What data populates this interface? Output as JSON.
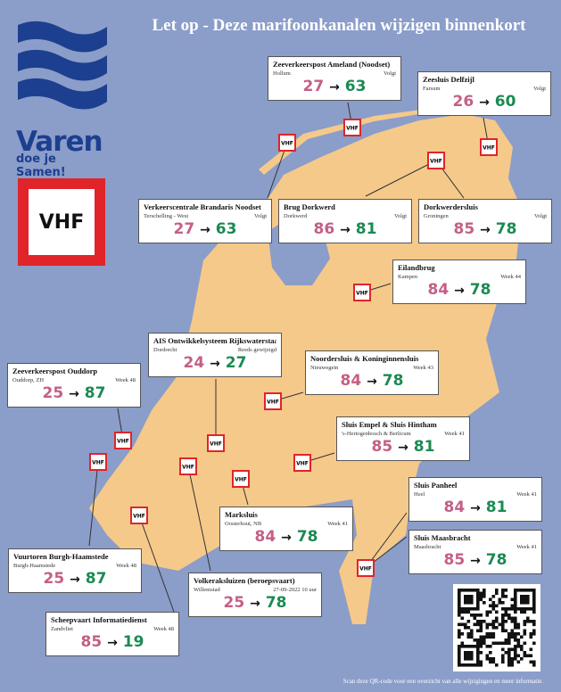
{
  "header": {
    "title": "Let op - Deze marifoonkanalen wijzigen binnenkort"
  },
  "logo": {
    "brand": "Varen",
    "tagline": "doe je Samen!",
    "vhf_label": "VHF"
  },
  "colors": {
    "sea": "#8b9dc9",
    "land": "#f5c98a",
    "old_channel": "#c45f86",
    "new_channel": "#1b8a52",
    "vhf_red": "#e0242a",
    "logo_blue": "#1d3f8f"
  },
  "marker_label": "VHF",
  "arrow_symbol": "→",
  "stations": [
    {
      "name": "Zeeverkeerspost Ameland (Noodset)",
      "place": "Hollum",
      "when": "Volgt",
      "old": "27",
      "new": "63"
    },
    {
      "name": "Zeesluis Delfzijl",
      "place": "Farsum",
      "when": "Volgt",
      "old": "26",
      "new": "60"
    },
    {
      "name": "Verkeerscentrale Brandaris Noodset",
      "place": "Terschelling - West",
      "when": "Volgt",
      "old": "27",
      "new": "63"
    },
    {
      "name": "Brug Dorkwerd",
      "place": "Dorkwerd",
      "when": "Volgt",
      "old": "86",
      "new": "81"
    },
    {
      "name": "Dorkwerdersluis",
      "place": "Groningen",
      "when": "Volgt",
      "old": "85",
      "new": "78"
    },
    {
      "name": "Eilandbrug",
      "place": "Kampen",
      "when": "Week 44",
      "old": "84",
      "new": "78"
    },
    {
      "name": "AIS Ontwikkelsysteem Rijkswaterstaat",
      "place": "Dordrecht",
      "when": "Reeds gewijzigd",
      "old": "24",
      "new": "27"
    },
    {
      "name": "Zeeverkeerspost Ouddorp",
      "place": "Ouddorp, ZH",
      "when": "Week 48",
      "old": "25",
      "new": "87"
    },
    {
      "name": "Noordersluis & Koninginnensluis",
      "place": "Nieuwegein",
      "when": "Week 43",
      "old": "84",
      "new": "78"
    },
    {
      "name": "Sluis Empel & Sluis Hintham",
      "place": "'s-Hertogenbosch & Berlicum",
      "when": "Week 41",
      "old": "85",
      "new": "81"
    },
    {
      "name": "Sluis Panheel",
      "place": "Heel",
      "when": "Week 41",
      "old": "84",
      "new": "81"
    },
    {
      "name": "Marksluis",
      "place": "Oosterhout, NB",
      "when": "Week 41",
      "old": "84",
      "new": "78"
    },
    {
      "name": "Sluis Maasbracht",
      "place": "Maasbracht",
      "when": "Week 41",
      "old": "85",
      "new": "78"
    },
    {
      "name": "Vuurtoren Burgh-Haamstede",
      "place": "Burgh-Haamstede",
      "when": "Week 48",
      "old": "25",
      "new": "87"
    },
    {
      "name": "Volkeraksluizen (beroepsvaart)",
      "place": "Willemstad",
      "when": "27-09-2022 10 uur",
      "old": "25",
      "new": "78"
    },
    {
      "name": "Scheepvaart Informatiedienst",
      "place": "Zandvliet",
      "when": "Week 48",
      "old": "85",
      "new": "19"
    }
  ],
  "footer": {
    "qr_caption": "Scan deze QR-code voor een overzicht van alle wijzigingen en meer informatie."
  }
}
